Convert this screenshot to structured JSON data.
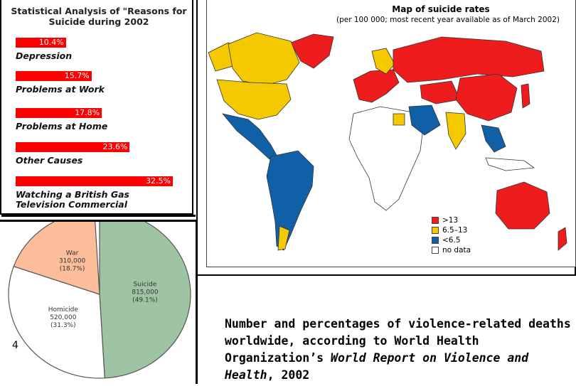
{
  "chart_data": [
    {
      "type": "bar",
      "title": "Statistical Analysis of \"Reasons for Suicide during 2002",
      "categories": [
        "Depression",
        "Problems at Work",
        "Problems at Home",
        "Other Causes",
        "Watching a British Gas Television Commercial"
      ],
      "value_labels": [
        "10.4%",
        "15.7%",
        "17.8%",
        "23.6%",
        "32.5%"
      ],
      "values": [
        10.4,
        15.7,
        17.8,
        23.6,
        32.5
      ],
      "xlabel": "",
      "ylabel": "",
      "colors": {
        "bar": "#ff0000",
        "label": "#ffffff"
      }
    },
    {
      "type": "pie",
      "slices": [
        {
          "name": "Suicide",
          "value_text": "815,000",
          "percent_text": "(49.1%)",
          "percent": 49.1,
          "color": "#9fc4a3"
        },
        {
          "name": "Homicide",
          "value_text": "520,000",
          "percent_text": "(31.3%)",
          "percent": 31.3,
          "color": "#ffffff"
        },
        {
          "name": "War",
          "value_text": "310,000",
          "percent_text": "(18.7%)",
          "percent": 18.7,
          "color": "#fbbd9a"
        }
      ]
    },
    {
      "type": "map",
      "title": "Map of suicide rates",
      "subtitle": "(per 100 000; most recent year available as of March 2002)",
      "legend": [
        {
          "label": ">13",
          "color": "#ee1c1c"
        },
        {
          "label": "6.5–13",
          "color": "#f5c900"
        },
        {
          "label": "<6.5",
          "color": "#1060a8"
        },
        {
          "label": "no data",
          "color": "#ffffff"
        }
      ],
      "legend_position": "bottom-right"
    }
  ],
  "slide_number": "4",
  "caption": {
    "line1": "Number and percentages of violence-related deaths",
    "line2": "worldwide, according to World Health",
    "line3_plain": "Organization’s ",
    "line3_italic": "World Report on Violence and",
    "line4_italic": "Health",
    "line4_plain": ", 2002"
  }
}
